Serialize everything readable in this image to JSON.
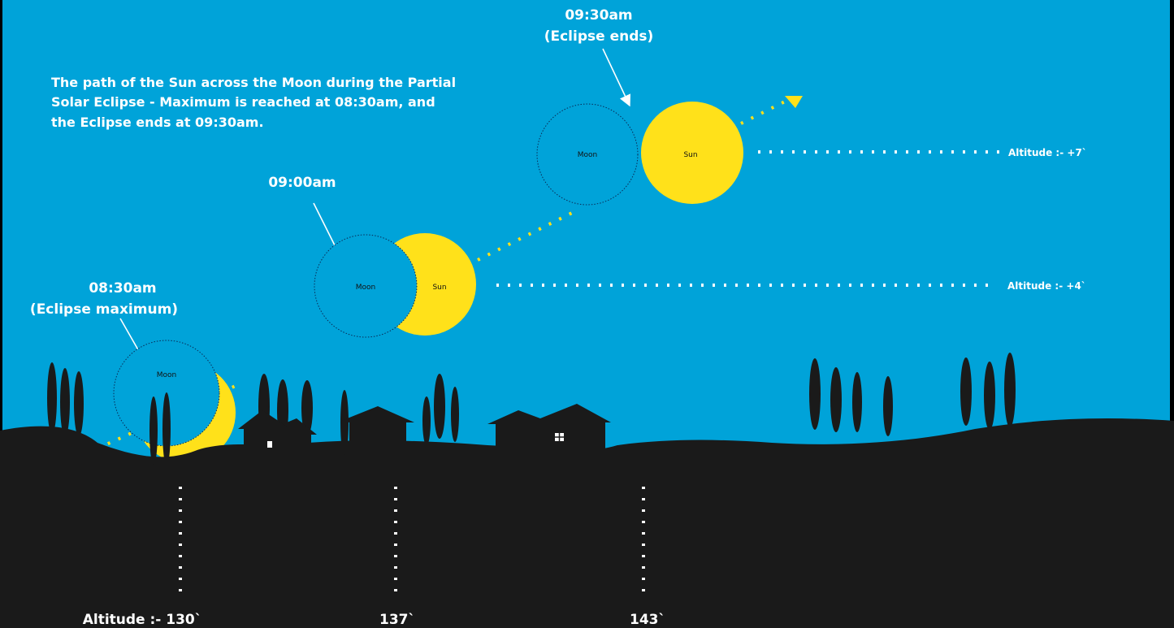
{
  "description": [
    "The path of the Sun across the Moon during the Partial",
    "Solar Eclipse - Maximum is reached at 08:30am, and",
    "the Eclipse ends at 09:30am."
  ],
  "stages": [
    {
      "time": "08:30am",
      "note": "(Eclipse maximum)",
      "moon": "Moon"
    },
    {
      "time": "09:00am",
      "moon": "Moon",
      "sun": "Sun",
      "altitude": "Altitude :-  +4`"
    },
    {
      "time": "09:30am",
      "note": "(Eclipse ends)",
      "moon": "Moon",
      "sun": "Sun",
      "altitude": "Altitude :-  +7`"
    }
  ],
  "bottom_labels": [
    "Altitude :- 130`",
    "137`",
    "143`"
  ]
}
